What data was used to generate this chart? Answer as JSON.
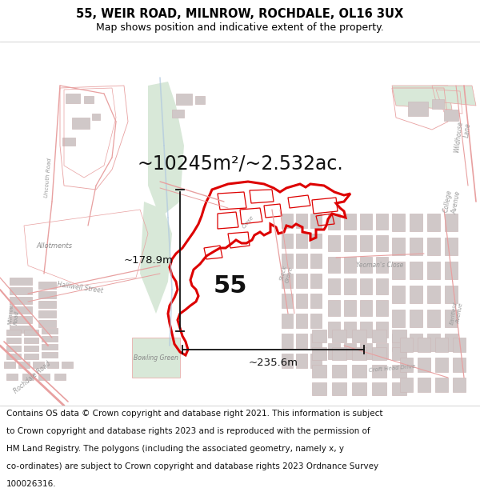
{
  "title_line1": "55, WEIR ROAD, MILNROW, ROCHDALE, OL16 3UX",
  "title_line2": "Map shows position and indicative extent of the property.",
  "area_text": "~10245m²/~2.532ac.",
  "label_55": "55",
  "dim_horizontal": "~235.6m",
  "dim_vertical": "~178.9m",
  "footer_lines": [
    "Contains OS data © Crown copyright and database right 2021. This information is subject",
    "to Crown copyright and database rights 2023 and is reproduced with the permission of",
    "HM Land Registry. The polygons (including the associated geometry, namely x, y",
    "co-ordinates) are subject to Crown copyright and database rights 2023 Ordnance Survey",
    "100026316."
  ],
  "map_bg": "#ffffff",
  "title_bg": "#ffffff",
  "footer_bg": "#ffffff",
  "road_color": "#e8a0a0",
  "road_lw": 0.7,
  "building_color": "#d0c8c8",
  "building_edge": "#ccbbbb",
  "highlight_color": "#dd0000",
  "highlight_lw": 2.2,
  "dim_color": "#111111",
  "text_color": "#888888",
  "green_fill": "#d8e8d8",
  "river_color": "#b0c8e0",
  "fig_width": 6.0,
  "fig_height": 6.25,
  "dpi": 100,
  "title_fontsize": 10.5,
  "subtitle_fontsize": 9,
  "area_fontsize": 17,
  "label_fontsize": 22,
  "dim_fontsize": 9.5,
  "footer_fontsize": 7.5,
  "map_label_fontsize": 5.5,
  "map_label_color": "#999999"
}
